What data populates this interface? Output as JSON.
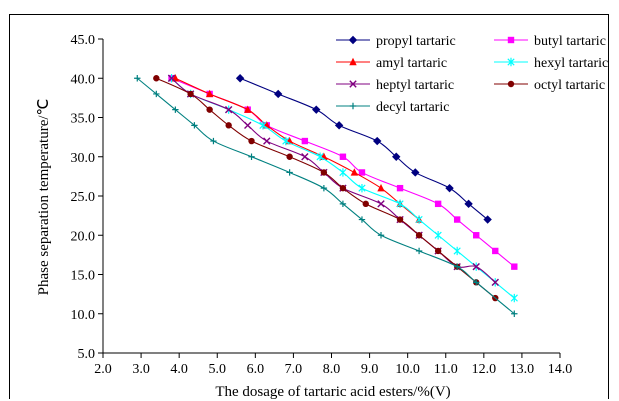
{
  "chart_data": {
    "type": "line",
    "xlabel": "The dosage of tartaric acid esters/%(V)",
    "ylabel": "Phase separation temperature/℃",
    "xlim": [
      2.0,
      14.0
    ],
    "ylim": [
      5.0,
      45.0
    ],
    "x_ticks": [
      "2.0",
      "3.0",
      "4.0",
      "5.0",
      "6.0",
      "7.0",
      "8.0",
      "9.0",
      "10.0",
      "11.0",
      "12.0",
      "13.0",
      "14.0"
    ],
    "y_ticks": [
      "5.0",
      "10.0",
      "15.0",
      "20.0",
      "25.0",
      "30.0",
      "35.0",
      "40.0",
      "45.0"
    ],
    "grid": false,
    "legend_position": "top-right",
    "series": [
      {
        "name": "propyl tartaric",
        "color": "#000080",
        "marker": "diamond",
        "x": [
          5.6,
          6.6,
          7.6,
          8.2,
          9.2,
          9.7,
          10.2,
          11.1,
          11.6,
          12.1
        ],
        "y": [
          40,
          38,
          36,
          34,
          32,
          30,
          28,
          26,
          24,
          22
        ]
      },
      {
        "name": "butyl tartaric",
        "color": "#FF00FF",
        "marker": "square",
        "x": [
          3.8,
          4.8,
          5.8,
          6.3,
          7.3,
          8.3,
          8.8,
          9.8,
          10.8,
          11.3,
          11.8,
          12.3,
          12.8
        ],
        "y": [
          40,
          38,
          36,
          34,
          32,
          30,
          28,
          26,
          24,
          22,
          20,
          18,
          16
        ]
      },
      {
        "name": "amyl tartaric",
        "color": "#FF0000",
        "marker": "triangle",
        "x": [
          3.9,
          4.8,
          5.8,
          6.3,
          6.9,
          7.8,
          8.6,
          9.3,
          9.8,
          10.3
        ],
        "y": [
          40,
          38,
          36,
          34,
          32,
          30,
          28,
          26,
          24,
          22
        ]
      },
      {
        "name": "hexyl tartaric",
        "color": "#00FFFF",
        "marker": "star",
        "x": [
          3.8,
          4.3,
          5.3,
          6.2,
          6.8,
          7.7,
          8.3,
          8.8,
          9.8,
          10.3,
          10.8,
          11.3,
          11.8,
          12.3,
          12.8
        ],
        "y": [
          40,
          38,
          36,
          34,
          32,
          30,
          28,
          26,
          24,
          22,
          20,
          18,
          16,
          14,
          12
        ]
      },
      {
        "name": "heptyl tartaric",
        "color": "#800080",
        "marker": "x",
        "x": [
          3.8,
          4.3,
          5.3,
          5.8,
          6.3,
          7.3,
          7.8,
          8.3,
          9.3,
          9.8,
          10.3,
          10.8,
          11.3,
          11.8,
          12.3
        ],
        "y": [
          40,
          38,
          36,
          34,
          32,
          30,
          28,
          26,
          24,
          22,
          20,
          18,
          16,
          16,
          14
        ]
      },
      {
        "name": "octyl tartaric",
        "color": "#800000",
        "marker": "circle",
        "x": [
          3.4,
          4.3,
          4.8,
          5.3,
          5.9,
          6.9,
          7.8,
          8.3,
          8.9,
          9.8,
          10.3,
          10.8,
          11.3,
          11.8,
          12.3
        ],
        "y": [
          40,
          38,
          36,
          34,
          32,
          30,
          28,
          26,
          24,
          22,
          20,
          18,
          16,
          14,
          12
        ]
      },
      {
        "name": "decyl tartaric",
        "color": "#008080",
        "marker": "plus",
        "x": [
          2.9,
          3.4,
          3.9,
          4.4,
          4.9,
          5.9,
          6.9,
          7.8,
          8.3,
          8.8,
          9.3,
          10.3,
          11.3,
          11.8,
          12.8
        ],
        "y": [
          40,
          38,
          36,
          34,
          32,
          30,
          28,
          26,
          24,
          22,
          20,
          18,
          16,
          14,
          10
        ]
      }
    ]
  }
}
